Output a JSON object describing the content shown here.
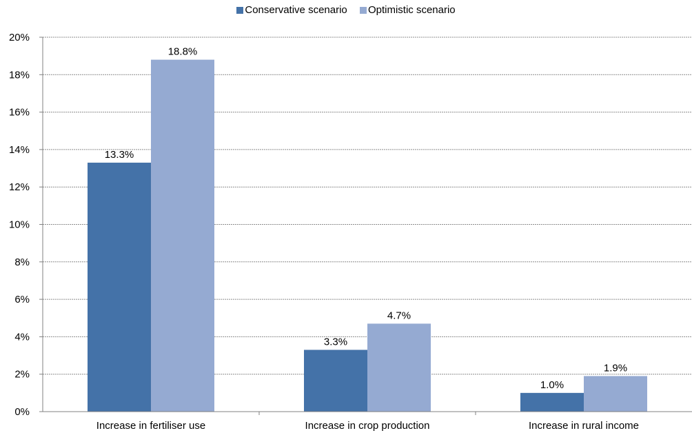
{
  "chart_data": {
    "type": "bar",
    "title": "",
    "xlabel": "",
    "ylabel": "",
    "categories": [
      "Increase in fertiliser use",
      "Increase in crop production",
      "Increase in rural income"
    ],
    "series": [
      {
        "name": "Conservative scenario",
        "values": [
          13.3,
          3.3,
          1.0
        ],
        "labels": [
          "13.3%",
          "3.3%",
          "1.0%"
        ],
        "color": "#4472a8"
      },
      {
        "name": "Optimistic scenario",
        "values": [
          18.8,
          4.7,
          1.9
        ],
        "labels": [
          "18.8%",
          "4.7%",
          "1.9%"
        ],
        "color": "#95aad2"
      }
    ],
    "ylim": [
      0,
      20
    ],
    "yticks": [
      0,
      2,
      4,
      6,
      8,
      10,
      12,
      14,
      16,
      18,
      20
    ],
    "ytick_labels": [
      "0%",
      "2%",
      "4%",
      "6%",
      "8%",
      "10%",
      "12%",
      "14%",
      "16%",
      "18%",
      "20%"
    ],
    "grid": true,
    "legend_position": "top"
  }
}
